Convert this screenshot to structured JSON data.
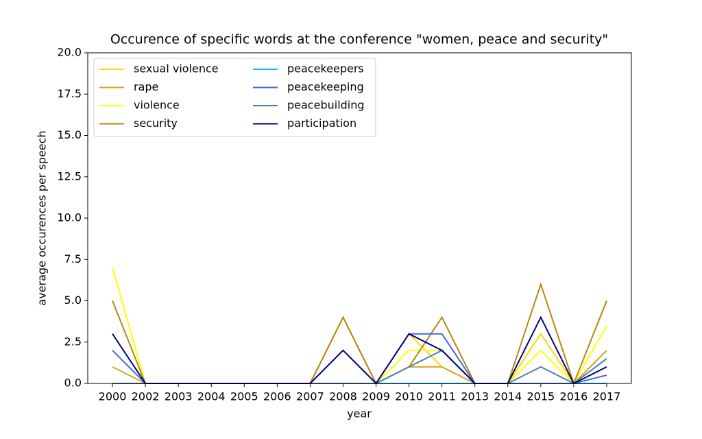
{
  "chart_data": {
    "type": "line",
    "title": "Occurence of specific words at the conference \"women, peace and security\"",
    "x_label": "year",
    "y_label": "average occurences per speech",
    "categories": [
      "2000",
      "2002",
      "2003",
      "2004",
      "2005",
      "2006",
      "2007",
      "2008",
      "2009",
      "2010",
      "2011",
      "2013",
      "2014",
      "2015",
      "2016",
      "2017"
    ],
    "series": [
      {
        "name": "sexual violence",
        "color": "#ffd700",
        "values": [
          0,
          0,
          0,
          0,
          0,
          0,
          0,
          0,
          0,
          3,
          1,
          0,
          0,
          3,
          0,
          2
        ]
      },
      {
        "name": "rape",
        "color": "#daa520",
        "values": [
          1,
          0,
          0,
          0,
          0,
          0,
          0,
          4,
          0,
          1,
          1,
          0,
          0,
          0,
          0,
          2
        ]
      },
      {
        "name": "violence",
        "color": "#ffff00",
        "values": [
          7,
          0,
          0,
          0,
          0,
          0,
          0,
          0,
          0,
          2,
          2,
          0,
          0,
          2,
          0,
          3.5
        ]
      },
      {
        "name": "security",
        "color": "#b8860b",
        "values": [
          5,
          0,
          0,
          0,
          0,
          0,
          0,
          4,
          0,
          1,
          4,
          0,
          0,
          6,
          0,
          5
        ]
      },
      {
        "name": "peacekeepers",
        "color": "#00bfff",
        "values": [
          0,
          0,
          0,
          0,
          0,
          0,
          0,
          0,
          0,
          0,
          0,
          0,
          0,
          0,
          0,
          0
        ]
      },
      {
        "name": "peacekeeping",
        "color": "#4169e1",
        "values": [
          2,
          0,
          0,
          0,
          0,
          0,
          0,
          0,
          0,
          3,
          3,
          0,
          0,
          0,
          0,
          0.5
        ]
      },
      {
        "name": "peacebuilding",
        "color": "#4682b4",
        "values": [
          0,
          0,
          0,
          0,
          0,
          0,
          0,
          0,
          0,
          1,
          2,
          0,
          0,
          1,
          0,
          1.5
        ]
      },
      {
        "name": "participation",
        "color": "#000080",
        "values": [
          3,
          0,
          0,
          0,
          0,
          0,
          0,
          2,
          0,
          3,
          2,
          0,
          0,
          4,
          0,
          1
        ]
      }
    ],
    "ylim": [
      0,
      20
    ],
    "yticks": [
      {
        "value": 0,
        "label": "0.0"
      },
      {
        "value": 2.5,
        "label": "2.5"
      },
      {
        "value": 5,
        "label": "5.0"
      },
      {
        "value": 7.5,
        "label": "7.5"
      },
      {
        "value": 10,
        "label": "10.0"
      },
      {
        "value": 12.5,
        "label": "12.5"
      },
      {
        "value": 15,
        "label": "15.0"
      },
      {
        "value": 17.5,
        "label": "17.5"
      },
      {
        "value": 20,
        "label": "20.0"
      }
    ],
    "legend": "upper left"
  }
}
